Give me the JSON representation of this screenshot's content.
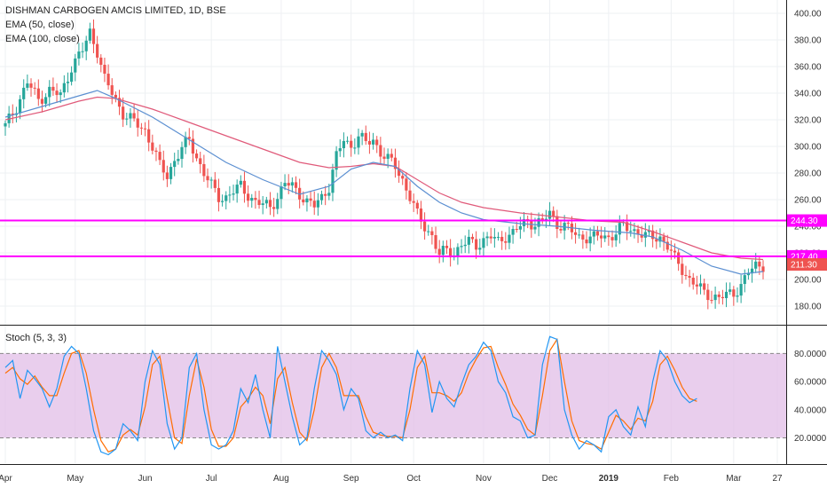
{
  "header": {
    "title": "DISHMAN CARBOGEN AMCIS LIMITED, 1D, BSE",
    "ema50_label": "EMA (50, close)",
    "ema100_label": "EMA (100, close)",
    "stoch_label": "Stoch (5, 3, 3)"
  },
  "colors": {
    "up": "#26a69a",
    "down": "#ef5350",
    "ema50": "#5b8fd1",
    "ema100": "#e05a7a",
    "hline": "#ff00ff",
    "stoch_k": "#2196f3",
    "stoch_d": "#ff6d00",
    "stoch_band": "#e1bee7",
    "price_tag": "#ef5350"
  },
  "chart_data": [
    {
      "type": "candlestick",
      "title": "DISHMAN CARBOGEN AMCIS LIMITED, 1D, BSE",
      "x_ticks": [
        "Apr",
        "May",
        "Jun",
        "Jul",
        "Aug",
        "Sep",
        "Oct",
        "Nov",
        "Dec",
        "2019",
        "Feb",
        "Mar",
        "27"
      ],
      "y_ticks": [
        "400.00",
        "380.00",
        "360.00",
        "340.00",
        "320.00",
        "300.00",
        "280.00",
        "260.00",
        "240.00",
        "220.00",
        "200.00",
        "180.00"
      ],
      "ylim": [
        166,
        406
      ],
      "close_path": [
        [
          0,
          315
        ],
        [
          3,
          330
        ],
        [
          6,
          348
        ],
        [
          9,
          335
        ],
        [
          12,
          342
        ],
        [
          15,
          338
        ],
        [
          18,
          360
        ],
        [
          21,
          372
        ],
        [
          23,
          386
        ],
        [
          25,
          372
        ],
        [
          27,
          350
        ],
        [
          29,
          340
        ],
        [
          32,
          325
        ],
        [
          35,
          318
        ],
        [
          38,
          312
        ],
        [
          40,
          300
        ],
        [
          42,
          285
        ],
        [
          44,
          278
        ],
        [
          46,
          290
        ],
        [
          48,
          298
        ],
        [
          50,
          305
        ],
        [
          52,
          292
        ],
        [
          54,
          280
        ],
        [
          56,
          270
        ],
        [
          58,
          262
        ],
        [
          60,
          262
        ],
        [
          62,
          266
        ],
        [
          64,
          270
        ],
        [
          66,
          264
        ],
        [
          68,
          258
        ],
        [
          70,
          256
        ],
        [
          72,
          255
        ],
        [
          74,
          262
        ],
        [
          76,
          272
        ],
        [
          78,
          270
        ],
        [
          80,
          265
        ],
        [
          82,
          258
        ],
        [
          84,
          255
        ],
        [
          86,
          262
        ],
        [
          88,
          270
        ],
        [
          90,
          292
        ],
        [
          92,
          305
        ],
        [
          94,
          300
        ],
        [
          96,
          308
        ],
        [
          98,
          302
        ],
        [
          100,
          305
        ],
        [
          102,
          296
        ],
        [
          104,
          290
        ],
        [
          106,
          285
        ],
        [
          108,
          275
        ],
        [
          110,
          262
        ],
        [
          112,
          248
        ],
        [
          114,
          240
        ],
        [
          116,
          233
        ],
        [
          118,
          218
        ],
        [
          120,
          222
        ],
        [
          122,
          220
        ],
        [
          124,
          226
        ],
        [
          126,
          228
        ],
        [
          128,
          226
        ],
        [
          130,
          230
        ],
        [
          132,
          232
        ],
        [
          134,
          228
        ],
        [
          136,
          233
        ],
        [
          138,
          235
        ],
        [
          140,
          240
        ],
        [
          142,
          244
        ],
        [
          144,
          242
        ],
        [
          146,
          243
        ],
        [
          148,
          250
        ],
        [
          150,
          242
        ],
        [
          152,
          240
        ],
        [
          154,
          236
        ],
        [
          156,
          232
        ],
        [
          158,
          232
        ],
        [
          160,
          231
        ],
        [
          162,
          233
        ],
        [
          164,
          232
        ],
        [
          166,
          235
        ],
        [
          168,
          240
        ],
        [
          170,
          238
        ],
        [
          172,
          236
        ],
        [
          174,
          232
        ],
        [
          176,
          232
        ],
        [
          178,
          232
        ],
        [
          180,
          225
        ],
        [
          182,
          215
        ],
        [
          184,
          208
        ],
        [
          186,
          200
        ],
        [
          188,
          195
        ],
        [
          190,
          190
        ],
        [
          192,
          188
        ],
        [
          194,
          186
        ],
        [
          196,
          188
        ],
        [
          198,
          190
        ],
        [
          200,
          196
        ],
        [
          202,
          205
        ],
        [
          204,
          210
        ],
        [
          206,
          211.3
        ]
      ],
      "ema50_path": [
        [
          0,
          322
        ],
        [
          10,
          330
        ],
        [
          20,
          338
        ],
        [
          25,
          342
        ],
        [
          30,
          336
        ],
        [
          40,
          322
        ],
        [
          50,
          305
        ],
        [
          60,
          288
        ],
        [
          70,
          275
        ],
        [
          80,
          264
        ],
        [
          88,
          270
        ],
        [
          94,
          283
        ],
        [
          100,
          288
        ],
        [
          106,
          285
        ],
        [
          112,
          270
        ],
        [
          118,
          258
        ],
        [
          124,
          250
        ],
        [
          130,
          245
        ],
        [
          140,
          242
        ],
        [
          150,
          240
        ],
        [
          160,
          237
        ],
        [
          170,
          235
        ],
        [
          176,
          232
        ],
        [
          184,
          222
        ],
        [
          192,
          210
        ],
        [
          200,
          204
        ],
        [
          206,
          206
        ]
      ],
      "ema100_path": [
        [
          0,
          320
        ],
        [
          10,
          326
        ],
        [
          20,
          334
        ],
        [
          25,
          337
        ],
        [
          30,
          336
        ],
        [
          40,
          328
        ],
        [
          50,
          318
        ],
        [
          60,
          308
        ],
        [
          70,
          298
        ],
        [
          80,
          288
        ],
        [
          88,
          284
        ],
        [
          94,
          285
        ],
        [
          100,
          287
        ],
        [
          106,
          285
        ],
        [
          112,
          275
        ],
        [
          118,
          265
        ],
        [
          124,
          258
        ],
        [
          130,
          254
        ],
        [
          140,
          250
        ],
        [
          150,
          247
        ],
        [
          160,
          244
        ],
        [
          168,
          243
        ],
        [
          176,
          236
        ],
        [
          184,
          228
        ],
        [
          192,
          220
        ],
        [
          200,
          216
        ],
        [
          206,
          215
        ]
      ],
      "horizontal_lines": [
        244.3,
        217.4
      ],
      "price_tags": [
        {
          "label": "244.30",
          "value": 244.3
        },
        {
          "label": "217.40",
          "value": 217.4
        },
        {
          "label": "211.30",
          "value": 211.3
        }
      ]
    },
    {
      "type": "line",
      "title": "Stoch (5, 3, 3)",
      "y_ticks": [
        "80.0000",
        "60.0000",
        "40.0000",
        "20.0000"
      ],
      "ylim": [
        2,
        96
      ],
      "band": [
        20,
        80
      ],
      "k_path": [
        [
          0,
          70
        ],
        [
          2,
          75
        ],
        [
          4,
          48
        ],
        [
          6,
          68
        ],
        [
          8,
          62
        ],
        [
          10,
          55
        ],
        [
          12,
          42
        ],
        [
          14,
          55
        ],
        [
          16,
          78
        ],
        [
          18,
          85
        ],
        [
          20,
          80
        ],
        [
          22,
          55
        ],
        [
          24,
          25
        ],
        [
          26,
          10
        ],
        [
          28,
          8
        ],
        [
          30,
          12
        ],
        [
          32,
          30
        ],
        [
          34,
          25
        ],
        [
          36,
          18
        ],
        [
          38,
          60
        ],
        [
          40,
          82
        ],
        [
          42,
          72
        ],
        [
          44,
          30
        ],
        [
          46,
          12
        ],
        [
          48,
          20
        ],
        [
          50,
          70
        ],
        [
          52,
          80
        ],
        [
          54,
          40
        ],
        [
          56,
          15
        ],
        [
          58,
          12
        ],
        [
          60,
          15
        ],
        [
          62,
          25
        ],
        [
          64,
          55
        ],
        [
          66,
          45
        ],
        [
          68,
          65
        ],
        [
          70,
          40
        ],
        [
          72,
          20
        ],
        [
          74,
          85
        ],
        [
          76,
          60
        ],
        [
          78,
          35
        ],
        [
          80,
          15
        ],
        [
          82,
          20
        ],
        [
          84,
          55
        ],
        [
          86,
          82
        ],
        [
          88,
          75
        ],
        [
          90,
          65
        ],
        [
          92,
          40
        ],
        [
          94,
          55
        ],
        [
          96,
          48
        ],
        [
          98,
          25
        ],
        [
          100,
          20
        ],
        [
          102,
          24
        ],
        [
          104,
          20
        ],
        [
          106,
          22
        ],
        [
          108,
          18
        ],
        [
          110,
          55
        ],
        [
          112,
          82
        ],
        [
          114,
          72
        ],
        [
          116,
          38
        ],
        [
          118,
          60
        ],
        [
          120,
          48
        ],
        [
          122,
          42
        ],
        [
          124,
          58
        ],
        [
          126,
          72
        ],
        [
          128,
          78
        ],
        [
          130,
          88
        ],
        [
          132,
          82
        ],
        [
          134,
          60
        ],
        [
          136,
          52
        ],
        [
          138,
          35
        ],
        [
          140,
          32
        ],
        [
          142,
          20
        ],
        [
          144,
          22
        ],
        [
          146,
          72
        ],
        [
          148,
          92
        ],
        [
          150,
          90
        ],
        [
          152,
          40
        ],
        [
          154,
          22
        ],
        [
          156,
          12
        ],
        [
          158,
          18
        ],
        [
          160,
          15
        ],
        [
          162,
          10
        ],
        [
          164,
          35
        ],
        [
          166,
          40
        ],
        [
          168,
          28
        ],
        [
          170,
          22
        ],
        [
          172,
          42
        ],
        [
          174,
          28
        ],
        [
          176,
          60
        ],
        [
          178,
          82
        ],
        [
          180,
          75
        ],
        [
          182,
          60
        ],
        [
          184,
          50
        ],
        [
          186,
          45
        ],
        [
          188,
          48
        ]
      ],
      "d_path": [
        [
          0,
          66
        ],
        [
          2,
          70
        ],
        [
          4,
          62
        ],
        [
          6,
          58
        ],
        [
          8,
          64
        ],
        [
          10,
          56
        ],
        [
          12,
          50
        ],
        [
          14,
          50
        ],
        [
          16,
          66
        ],
        [
          18,
          80
        ],
        [
          20,
          82
        ],
        [
          22,
          66
        ],
        [
          24,
          40
        ],
        [
          26,
          18
        ],
        [
          28,
          10
        ],
        [
          30,
          12
        ],
        [
          32,
          22
        ],
        [
          34,
          26
        ],
        [
          36,
          22
        ],
        [
          38,
          42
        ],
        [
          40,
          72
        ],
        [
          42,
          78
        ],
        [
          44,
          48
        ],
        [
          46,
          20
        ],
        [
          48,
          16
        ],
        [
          50,
          50
        ],
        [
          52,
          76
        ],
        [
          54,
          56
        ],
        [
          56,
          26
        ],
        [
          58,
          14
        ],
        [
          60,
          14
        ],
        [
          62,
          20
        ],
        [
          64,
          42
        ],
        [
          66,
          48
        ],
        [
          68,
          56
        ],
        [
          70,
          50
        ],
        [
          72,
          30
        ],
        [
          74,
          62
        ],
        [
          76,
          70
        ],
        [
          78,
          45
        ],
        [
          80,
          24
        ],
        [
          82,
          18
        ],
        [
          84,
          40
        ],
        [
          86,
          70
        ],
        [
          88,
          80
        ],
        [
          90,
          70
        ],
        [
          92,
          50
        ],
        [
          94,
          50
        ],
        [
          96,
          50
        ],
        [
          98,
          35
        ],
        [
          100,
          24
        ],
        [
          102,
          22
        ],
        [
          104,
          21
        ],
        [
          106,
          21
        ],
        [
          108,
          20
        ],
        [
          110,
          40
        ],
        [
          112,
          70
        ],
        [
          114,
          78
        ],
        [
          116,
          52
        ],
        [
          118,
          52
        ],
        [
          120,
          50
        ],
        [
          122,
          46
        ],
        [
          124,
          52
        ],
        [
          126,
          66
        ],
        [
          128,
          76
        ],
        [
          130,
          84
        ],
        [
          132,
          85
        ],
        [
          134,
          70
        ],
        [
          136,
          58
        ],
        [
          138,
          44
        ],
        [
          140,
          36
        ],
        [
          142,
          26
        ],
        [
          144,
          22
        ],
        [
          146,
          50
        ],
        [
          148,
          82
        ],
        [
          150,
          90
        ],
        [
          152,
          60
        ],
        [
          154,
          32
        ],
        [
          156,
          18
        ],
        [
          158,
          16
        ],
        [
          160,
          15
        ],
        [
          162,
          12
        ],
        [
          164,
          24
        ],
        [
          166,
          36
        ],
        [
          168,
          32
        ],
        [
          170,
          26
        ],
        [
          172,
          34
        ],
        [
          174,
          32
        ],
        [
          176,
          46
        ],
        [
          178,
          72
        ],
        [
          180,
          78
        ],
        [
          182,
          68
        ],
        [
          184,
          56
        ],
        [
          186,
          48
        ],
        [
          188,
          46
        ]
      ]
    }
  ]
}
